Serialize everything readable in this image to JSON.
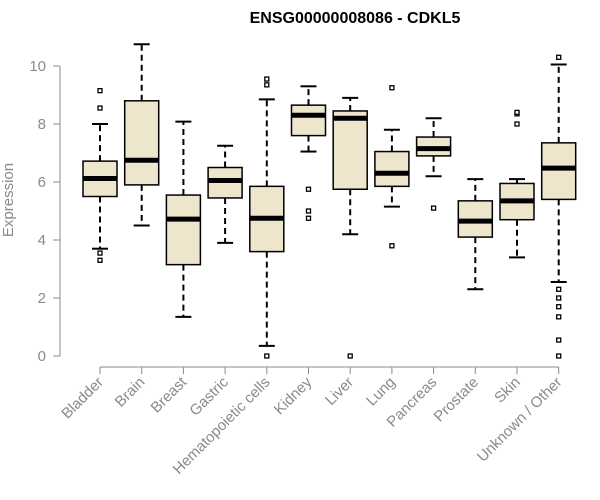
{
  "chart_data": {
    "type": "boxplot",
    "title": "ENSG00000008086 - CDKL5",
    "xlabel": "",
    "ylabel": "Expression",
    "ylim": [
      0,
      10.8
    ],
    "yticks": [
      0,
      2,
      4,
      6,
      8,
      10
    ],
    "grid": false,
    "colors": {
      "box_fill": "#ede5cc",
      "stroke": "#000000",
      "axis": "#8a8a8a"
    },
    "categories": [
      "Bladder",
      "Brain",
      "Breast",
      "Gastric",
      "Hematopoietic cells",
      "Kidney",
      "Liver",
      "Lung",
      "Pancreas",
      "Prostate",
      "Skin",
      "Unknown / Other"
    ],
    "boxes": [
      {
        "category": "Bladder",
        "q1": 5.5,
        "median": 6.12,
        "q3": 6.72,
        "whisker_low": 3.7,
        "whisker_high": 8.0,
        "outliers": [
          3.3,
          3.55,
          8.55,
          9.15
        ]
      },
      {
        "category": "Brain",
        "q1": 5.9,
        "median": 6.75,
        "q3": 8.8,
        "whisker_low": 4.5,
        "whisker_high": 10.75,
        "outliers": []
      },
      {
        "category": "Breast",
        "q1": 3.15,
        "median": 4.72,
        "q3": 5.55,
        "whisker_low": 1.35,
        "whisker_high": 8.08,
        "outliers": []
      },
      {
        "category": "Gastric",
        "q1": 5.45,
        "median": 6.05,
        "q3": 6.5,
        "whisker_low": 3.9,
        "whisker_high": 7.25,
        "outliers": []
      },
      {
        "category": "Hematopoietic cells",
        "q1": 3.6,
        "median": 4.75,
        "q3": 5.85,
        "whisker_low": 0.35,
        "whisker_high": 8.85,
        "outliers": [
          0.0,
          9.35,
          9.55
        ]
      },
      {
        "category": "Kidney",
        "q1": 7.6,
        "median": 8.3,
        "q3": 8.65,
        "whisker_low": 7.05,
        "whisker_high": 9.3,
        "outliers": [
          5.75,
          5.0,
          4.75
        ]
      },
      {
        "category": "Liver",
        "q1": 5.75,
        "median": 8.2,
        "q3": 8.45,
        "whisker_low": 4.2,
        "whisker_high": 8.9,
        "outliers": [
          0.0
        ]
      },
      {
        "category": "Lung",
        "q1": 5.85,
        "median": 6.3,
        "q3": 7.05,
        "whisker_low": 5.15,
        "whisker_high": 7.8,
        "outliers": [
          3.8,
          9.25
        ]
      },
      {
        "category": "Pancreas",
        "q1": 6.9,
        "median": 7.15,
        "q3": 7.55,
        "whisker_low": 6.2,
        "whisker_high": 8.2,
        "outliers": [
          5.1
        ]
      },
      {
        "category": "Prostate",
        "q1": 4.1,
        "median": 4.65,
        "q3": 5.35,
        "whisker_low": 2.3,
        "whisker_high": 6.1,
        "outliers": []
      },
      {
        "category": "Skin",
        "q1": 4.7,
        "median": 5.35,
        "q3": 5.95,
        "whisker_low": 3.4,
        "whisker_high": 6.1,
        "outliers": [
          8.0,
          8.35,
          8.4
        ]
      },
      {
        "category": "Unknown / Other",
        "q1": 5.4,
        "median": 6.48,
        "q3": 7.35,
        "whisker_low": 2.55,
        "whisker_high": 10.05,
        "outliers": [
          0.0,
          0.55,
          1.35,
          1.7,
          2.0,
          2.3,
          10.3
        ]
      }
    ]
  }
}
